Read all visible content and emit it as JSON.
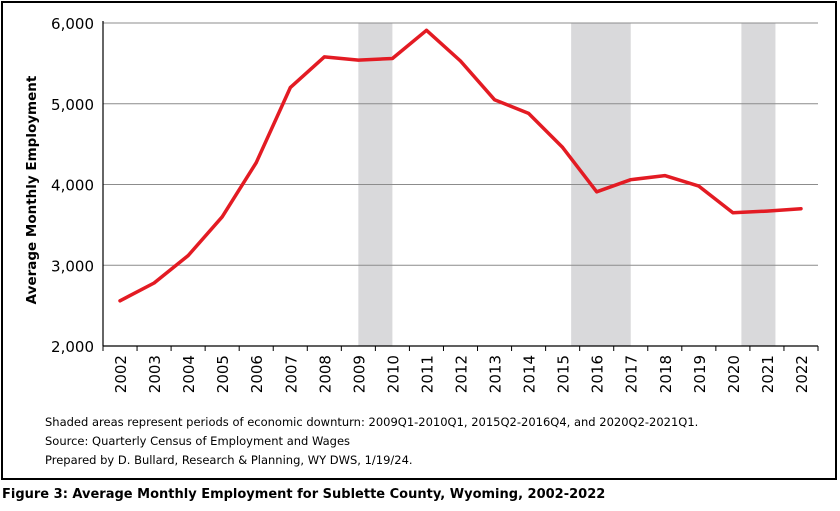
{
  "chart_data": {
    "type": "line",
    "title": "",
    "xlabel": "",
    "ylabel": "Average Monthly Employment",
    "ylim": [
      2000,
      6000
    ],
    "yticks": [
      "2,000",
      "3,000",
      "4,000",
      "5,000",
      "6,000"
    ],
    "ytick_values": [
      2000,
      3000,
      4000,
      5000,
      6000
    ],
    "categories": [
      "2002",
      "2003",
      "2004",
      "2005",
      "2006",
      "2007",
      "2008",
      "2009",
      "2010",
      "2011",
      "2012",
      "2013",
      "2014",
      "2015",
      "2016",
      "2017",
      "2018",
      "2019",
      "2020",
      "2021",
      "2022"
    ],
    "values": [
      2560,
      2780,
      3120,
      3600,
      4270,
      5200,
      5580,
      5540,
      5560,
      5910,
      5530,
      5050,
      4880,
      4460,
      3910,
      4060,
      4110,
      3980,
      3650,
      3670,
      3700
    ],
    "series_color": "#e31b23",
    "grid": "horizontal",
    "shaded_periods": [
      {
        "start": 2009.0,
        "end": 2010.0
      },
      {
        "start": 2015.25,
        "end": 2017.0
      },
      {
        "start": 2020.25,
        "end": 2021.25
      }
    ],
    "shade_color": "#d9d9db"
  },
  "notes": {
    "shaded": "Shaded areas represent periods of economic downturn: 2009Q1-2010Q1, 2015Q2-2016Q4, and 2020Q2-2021Q1.",
    "source": "Source: Quarterly Census of Employment and Wages",
    "prepared": "Prepared by D. Bullard, Research & Planning, WY DWS, 1/19/24."
  },
  "caption": "Figure 3: Average Monthly Employment for Sublette County, Wyoming, 2002-2022"
}
